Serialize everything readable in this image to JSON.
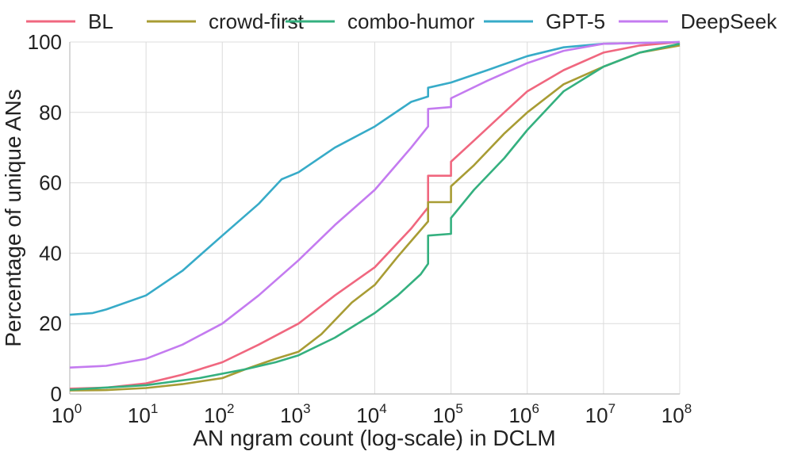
{
  "chart_data": {
    "type": "line",
    "title": "",
    "xlabel": "AN ngram count (log-scale) in DCLM",
    "ylabel": "Percentage of unique ANs",
    "x_scale": "log",
    "xlim": [
      1,
      100000000
    ],
    "ylim": [
      0,
      100
    ],
    "x_ticks": [
      {
        "base": "10",
        "exp": "0",
        "value": 1
      },
      {
        "base": "10",
        "exp": "1",
        "value": 10
      },
      {
        "base": "10",
        "exp": "2",
        "value": 100
      },
      {
        "base": "10",
        "exp": "3",
        "value": 1000
      },
      {
        "base": "10",
        "exp": "4",
        "value": 10000
      },
      {
        "base": "10",
        "exp": "5",
        "value": 100000
      },
      {
        "base": "10",
        "exp": "6",
        "value": 1000000
      },
      {
        "base": "10",
        "exp": "7",
        "value": 10000000
      },
      {
        "base": "10",
        "exp": "8",
        "value": 100000000
      }
    ],
    "y_ticks": [
      "0",
      "20",
      "40",
      "60",
      "80",
      "100"
    ],
    "grid": true,
    "legend_position": "top",
    "series": [
      {
        "name": "BL",
        "color": "#f0677f",
        "points": [
          [
            1,
            1.5
          ],
          [
            3,
            1.8
          ],
          [
            10,
            3
          ],
          [
            30,
            5.5
          ],
          [
            100,
            9
          ],
          [
            300,
            14
          ],
          [
            1000,
            20
          ],
          [
            3000,
            28
          ],
          [
            10000,
            36
          ],
          [
            30000,
            47
          ],
          [
            50000,
            53
          ],
          [
            50000,
            62
          ],
          [
            100000,
            62
          ],
          [
            100000,
            66
          ],
          [
            200000,
            72
          ],
          [
            500000,
            80
          ],
          [
            1000000,
            86
          ],
          [
            3000000,
            92
          ],
          [
            10000000,
            97
          ],
          [
            30000000,
            99
          ],
          [
            100000000,
            100
          ]
        ]
      },
      {
        "name": "crowd-first",
        "color": "#a89c34",
        "points": [
          [
            1,
            1
          ],
          [
            3,
            1.1
          ],
          [
            10,
            1.7
          ],
          [
            30,
            2.8
          ],
          [
            100,
            4.5
          ],
          [
            200,
            7
          ],
          [
            500,
            10
          ],
          [
            1000,
            12
          ],
          [
            2000,
            17
          ],
          [
            5000,
            26
          ],
          [
            10000,
            31
          ],
          [
            20000,
            39
          ],
          [
            50000,
            49
          ],
          [
            50000,
            54.5
          ],
          [
            100000,
            54.5
          ],
          [
            100000,
            59
          ],
          [
            200000,
            65
          ],
          [
            500000,
            74
          ],
          [
            1000000,
            80
          ],
          [
            3000000,
            88
          ],
          [
            10000000,
            93
          ],
          [
            30000000,
            97
          ],
          [
            100000000,
            99
          ]
        ]
      },
      {
        "name": "combo-humor",
        "color": "#34b07f",
        "points": [
          [
            1,
            1.2
          ],
          [
            10,
            2.5
          ],
          [
            50,
            4.5
          ],
          [
            200,
            7
          ],
          [
            500,
            9
          ],
          [
            1000,
            11
          ],
          [
            3000,
            16
          ],
          [
            10000,
            23
          ],
          [
            20000,
            28
          ],
          [
            40000,
            34
          ],
          [
            50000,
            37
          ],
          [
            50000,
            45
          ],
          [
            100000,
            45.5
          ],
          [
            100000,
            50
          ],
          [
            200000,
            58
          ],
          [
            500000,
            67
          ],
          [
            1000000,
            75
          ],
          [
            3000000,
            86
          ],
          [
            10000000,
            93
          ],
          [
            30000000,
            97
          ],
          [
            100000000,
            99.5
          ]
        ]
      },
      {
        "name": "GPT-5",
        "color": "#37abc8",
        "points": [
          [
            1,
            22.5
          ],
          [
            2,
            23
          ],
          [
            3,
            24
          ],
          [
            10,
            28
          ],
          [
            30,
            35
          ],
          [
            100,
            45
          ],
          [
            300,
            54
          ],
          [
            600,
            61
          ],
          [
            1000,
            63
          ],
          [
            3000,
            70
          ],
          [
            10000,
            76
          ],
          [
            30000,
            83
          ],
          [
            50000,
            84.5
          ],
          [
            50000,
            87
          ],
          [
            100000,
            88.5
          ],
          [
            300000,
            92
          ],
          [
            1000000,
            96
          ],
          [
            3000000,
            98.5
          ],
          [
            10000000,
            99.5
          ],
          [
            100000000,
            100
          ]
        ]
      },
      {
        "name": "DeepSeek",
        "color": "#c47bf0",
        "points": [
          [
            1,
            7.5
          ],
          [
            3,
            8
          ],
          [
            10,
            10
          ],
          [
            30,
            14
          ],
          [
            100,
            20
          ],
          [
            300,
            28
          ],
          [
            1000,
            38
          ],
          [
            3000,
            48
          ],
          [
            10000,
            58
          ],
          [
            30000,
            70
          ],
          [
            50000,
            76
          ],
          [
            50000,
            81
          ],
          [
            100000,
            81.5
          ],
          [
            100000,
            84
          ],
          [
            300000,
            89
          ],
          [
            1000000,
            94
          ],
          [
            3000000,
            97.5
          ],
          [
            10000000,
            99.5
          ],
          [
            100000000,
            100
          ]
        ]
      }
    ]
  }
}
